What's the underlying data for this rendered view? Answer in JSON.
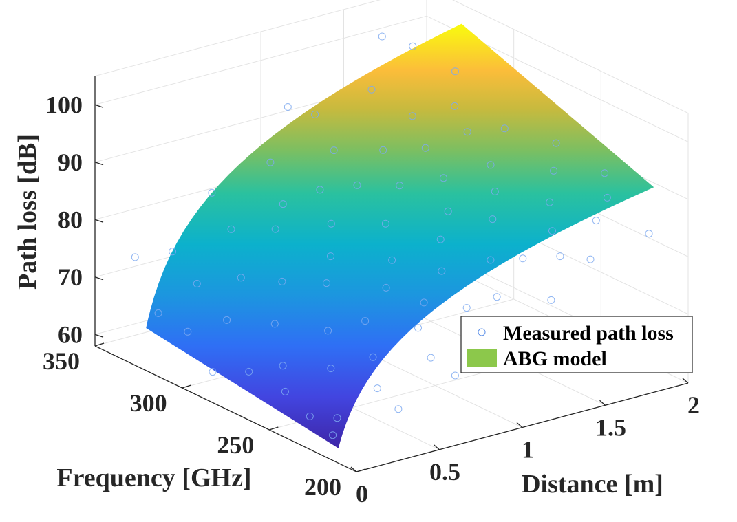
{
  "chart_data": {
    "type": "surface3d",
    "title": "",
    "xlabel": "Distance [m]",
    "ylabel": "Frequency [GHz]",
    "zlabel": "Path loss [dB]",
    "xlim": [
      0,
      2
    ],
    "ylim": [
      200,
      350
    ],
    "zlim": [
      58,
      105
    ],
    "x_ticks": [
      "0",
      "0.5",
      "1",
      "1.5",
      "2"
    ],
    "y_ticks": [
      "200",
      "250",
      "300",
      "350"
    ],
    "z_ticks": [
      "60",
      "70",
      "80",
      "90",
      "100"
    ],
    "grid": true,
    "legend": {
      "position": "bottom-right",
      "entries": [
        "Measured path loss",
        "ABG model"
      ]
    },
    "surface": {
      "name": "ABG model",
      "distance_range_m": [
        0.1,
        2.0
      ],
      "frequency_range_GHz": [
        220,
        330
      ],
      "corner_values_dB": {
        "d0.1_f220": 58.5,
        "d0.1_f330": 63.3,
        "d2.0_f220": 89.2,
        "d2.0_f330": 101.5
      }
    },
    "scatter": {
      "name": "Measured path loss",
      "marker": "circle",
      "points": [
        [
          0.12,
          225,
          59.8
        ],
        [
          0.15,
          241,
          60.5
        ],
        [
          0.18,
          258,
          62.1
        ],
        [
          0.14,
          275,
          63.4
        ],
        [
          0.1,
          292,
          61.2
        ],
        [
          0.16,
          312,
          64.8
        ],
        [
          0.13,
          326,
          66.2
        ],
        [
          0.22,
          232,
          61.0
        ],
        [
          0.25,
          266,
          64.9
        ],
        [
          0.28,
          301,
          67.5
        ],
        [
          0.3,
          320,
          70.9
        ],
        [
          0.35,
          248,
          66.3
        ],
        [
          0.38,
          283,
          68.7
        ],
        [
          0.42,
          228,
          65.2
        ],
        [
          0.45,
          309,
          72.4
        ],
        [
          0.48,
          262,
          69.8
        ],
        [
          0.52,
          240,
          68.1
        ],
        [
          0.55,
          295,
          73.0
        ],
        [
          0.58,
          327,
          77.2
        ],
        [
          0.62,
          254,
          71.6
        ],
        [
          0.65,
          279,
          74.3
        ],
        [
          0.68,
          222,
          69.4
        ],
        [
          0.72,
          315,
          77.9
        ],
        [
          0.75,
          236,
          72.0
        ],
        [
          0.78,
          289,
          76.5
        ],
        [
          0.82,
          261,
          74.8
        ],
        [
          0.85,
          323,
          80.1
        ],
        [
          0.88,
          245,
          74.1
        ],
        [
          0.92,
          302,
          79.2
        ],
        [
          0.95,
          270,
          77.3
        ],
        [
          0.98,
          230,
          74.6
        ],
        [
          1.02,
          318,
          82.0
        ],
        [
          1.05,
          251,
          77.4
        ],
        [
          1.08,
          286,
          80.3
        ],
        [
          1.12,
          226,
          76.0
        ],
        [
          1.15,
          309,
          83.1
        ],
        [
          1.18,
          264,
          80.0
        ],
        [
          1.22,
          329,
          85.7
        ],
        [
          1.25,
          242,
          79.1
        ],
        [
          1.28,
          297,
          83.8
        ],
        [
          1.32,
          273,
          82.5
        ],
        [
          1.35,
          233,
          79.9
        ],
        [
          1.38,
          316,
          86.4
        ],
        [
          1.42,
          257,
          82.7
        ],
        [
          1.45,
          288,
          85.1
        ],
        [
          1.48,
          224,
          80.6
        ],
        [
          1.52,
          305,
          87.3
        ],
        [
          1.55,
          268,
          84.9
        ],
        [
          1.58,
          238,
          82.2
        ],
        [
          1.62,
          322,
          89.6
        ],
        [
          1.65,
          280,
          87.0
        ],
        [
          1.68,
          249,
          84.8
        ],
        [
          1.72,
          300,
          89.3
        ],
        [
          1.75,
          229,
          84.0
        ],
        [
          1.78,
          313,
          91.4
        ],
        [
          1.82,
          260,
          87.6
        ],
        [
          1.85,
          291,
          90.2
        ],
        [
          1.88,
          235,
          86.1
        ],
        [
          1.92,
          326,
          94.5
        ],
        [
          1.95,
          271,
          89.8
        ],
        [
          1.98,
          246,
          88.0
        ],
        [
          0.32,
          336,
          74.0
        ],
        [
          0.6,
          340,
          81.5
        ],
        [
          0.9,
          335,
          85.2
        ],
        [
          1.2,
          338,
          90.8
        ],
        [
          1.5,
          334,
          93.4
        ],
        [
          1.8,
          339,
          97.9
        ],
        [
          0.4,
          214,
          63.8
        ],
        [
          0.7,
          210,
          67.9
        ],
        [
          1.0,
          216,
          72.3
        ],
        [
          1.3,
          212,
          76.1
        ],
        [
          1.6,
          218,
          80.0
        ],
        [
          1.9,
          213,
          82.9
        ],
        [
          0.2,
          346,
          72.5
        ],
        [
          1.1,
          344,
          92.0
        ],
        [
          1.7,
          347,
          99.2
        ]
      ]
    }
  }
}
